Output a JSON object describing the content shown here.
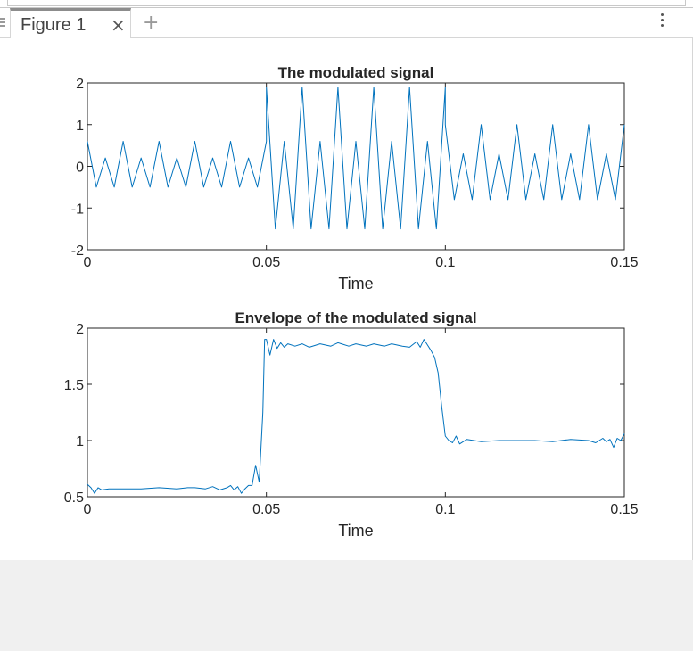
{
  "window": {
    "tab_label": "Figure 1",
    "close_glyph": "×",
    "add_glyph": "+"
  },
  "icons": [
    "grip-icon",
    "close-icon",
    "plus-icon",
    "kebab-menu-icon"
  ],
  "colors": {
    "line": "#0072bd",
    "axes": "#262626",
    "background": "#ffffff"
  },
  "chart_data": [
    {
      "type": "line",
      "title": "The modulated signal",
      "xlabel": "Time",
      "ylabel": "",
      "xlim": [
        0,
        0.15
      ],
      "ylim": [
        -2,
        2
      ],
      "xticks": [
        0,
        0.05,
        0.1,
        0.15
      ],
      "xtick_labels": [
        "0",
        "0.05",
        "0.1",
        "0.15"
      ],
      "yticks": [
        2,
        1,
        0,
        -1,
        -2
      ],
      "ytick_labels": [
        "2",
        "1",
        "0",
        "-1",
        "-2"
      ],
      "grid": false,
      "series": [
        {
          "segments": [
            {
              "x_start": 0,
              "x_end": 0.05,
              "pattern": [
                0.6,
                -0.5,
                0.2,
                -0.5,
                0.6,
                -0.5,
                0.2,
                -0.5
              ],
              "step": 0.0025
            },
            {
              "x_start": 0.05,
              "x_end": 0.1,
              "pattern": [
                1.9,
                -1.5,
                0.6,
                -1.5
              ],
              "step": 0.0025
            },
            {
              "x_start": 0.1,
              "x_end": 0.15,
              "pattern": [
                1.0,
                -0.8,
                0.3,
                -0.8
              ],
              "step": 0.0025
            }
          ]
        }
      ]
    },
    {
      "type": "line",
      "title": "Envelope of the modulated signal",
      "xlabel": "Time",
      "ylabel": "",
      "xlim": [
        0,
        0.15
      ],
      "ylim": [
        0.5,
        2
      ],
      "xticks": [
        0,
        0.05,
        0.1,
        0.15
      ],
      "xtick_labels": [
        "0",
        "0.05",
        "0.1",
        "0.15"
      ],
      "yticks": [
        2,
        1.5,
        1,
        0.5
      ],
      "ytick_labels": [
        "2",
        "1.5",
        "1",
        "0.5"
      ],
      "grid": false,
      "series": [
        {
          "x": [
            0,
            0.001,
            0.002,
            0.003,
            0.004,
            0.006,
            0.01,
            0.015,
            0.02,
            0.025,
            0.028,
            0.03,
            0.033,
            0.035,
            0.037,
            0.039,
            0.04,
            0.041,
            0.042,
            0.043,
            0.044,
            0.045,
            0.046,
            0.047,
            0.048,
            0.049,
            0.0495,
            0.05,
            0.051,
            0.052,
            0.053,
            0.054,
            0.055,
            0.056,
            0.058,
            0.06,
            0.062,
            0.065,
            0.068,
            0.07,
            0.073,
            0.075,
            0.078,
            0.08,
            0.083,
            0.085,
            0.088,
            0.09,
            0.092,
            0.093,
            0.094,
            0.095,
            0.096,
            0.097,
            0.098,
            0.099,
            0.1,
            0.101,
            0.102,
            0.103,
            0.104,
            0.106,
            0.11,
            0.115,
            0.12,
            0.125,
            0.13,
            0.135,
            0.14,
            0.142,
            0.144,
            0.145,
            0.146,
            0.147,
            0.148,
            0.149,
            0.15
          ],
          "y": [
            0.61,
            0.58,
            0.53,
            0.58,
            0.56,
            0.57,
            0.57,
            0.57,
            0.58,
            0.57,
            0.58,
            0.58,
            0.57,
            0.59,
            0.56,
            0.58,
            0.6,
            0.56,
            0.59,
            0.53,
            0.57,
            0.6,
            0.6,
            0.78,
            0.63,
            1.25,
            1.9,
            1.9,
            1.76,
            1.9,
            1.82,
            1.87,
            1.83,
            1.86,
            1.84,
            1.86,
            1.83,
            1.86,
            1.84,
            1.87,
            1.84,
            1.86,
            1.84,
            1.86,
            1.84,
            1.86,
            1.84,
            1.83,
            1.88,
            1.83,
            1.9,
            1.85,
            1.8,
            1.74,
            1.6,
            1.3,
            1.04,
            1.0,
            0.98,
            1.04,
            0.97,
            1.01,
            0.99,
            1.0,
            1.0,
            1.0,
            0.99,
            1.01,
            1.0,
            0.98,
            1.02,
            0.99,
            1.01,
            0.94,
            1.02,
            1.0,
            1.06
          ]
        }
      ]
    }
  ]
}
